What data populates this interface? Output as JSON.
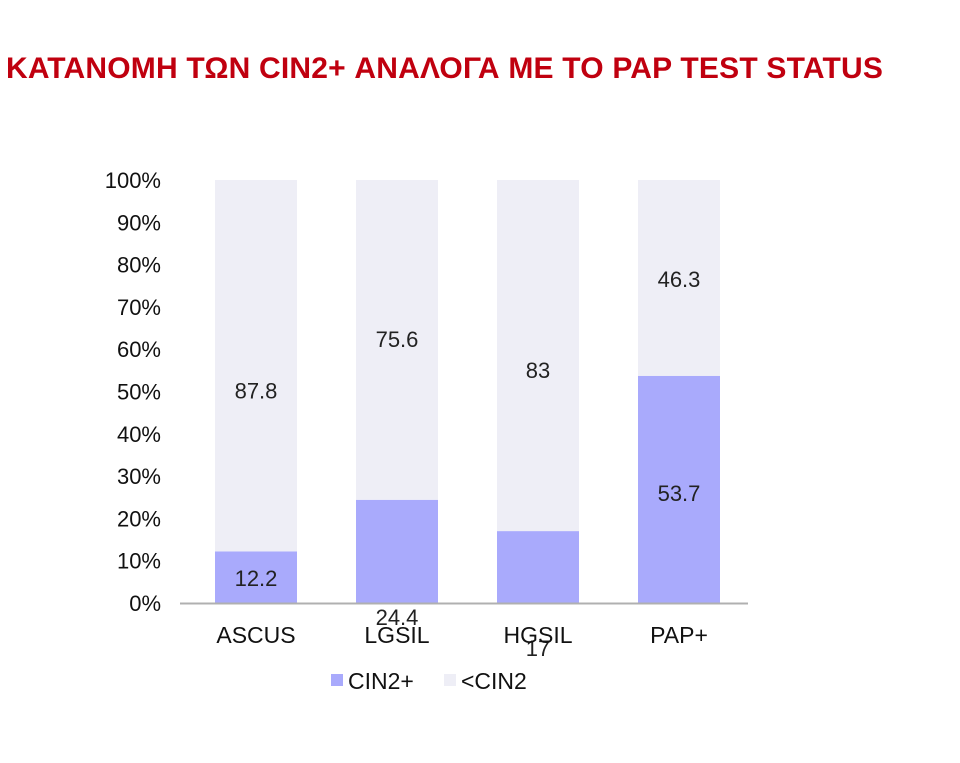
{
  "page": {
    "title": "ΚΑΤΑΝΟΜΗ ΤΩΝ CIN2+ ΑΝΑΛΟΓΑ ΜΕ ΤΟ PAP TEST STATUS",
    "title_color": "#c0000f"
  },
  "chart_data": {
    "type": "bar",
    "stacked": true,
    "percent_stacked": true,
    "title": "",
    "xlabel": "",
    "ylabel": "",
    "categories": [
      "ASCUS",
      "LGSIL",
      "HGSIL",
      "PAP+"
    ],
    "series": [
      {
        "name": "CIN2+",
        "values": [
          12.2,
          24.4,
          17,
          53.7
        ],
        "labels": [
          "12.2",
          "24.4",
          "17",
          "53.7"
        ],
        "color": "#a9aafc"
      },
      {
        "name": "<CIN2",
        "values": [
          87.8,
          75.6,
          83,
          46.3
        ],
        "labels": [
          "87.8",
          "75.6",
          "83",
          "46.3"
        ],
        "color": "#eeeef6"
      }
    ],
    "ylim": [
      0,
      100
    ],
    "y_ticks": [
      "0%",
      "10%",
      "20%",
      "30%",
      "40%",
      "50%",
      "60%",
      "70%",
      "80%",
      "90%",
      "100%"
    ],
    "grid": false,
    "legend_position": "bottom"
  }
}
